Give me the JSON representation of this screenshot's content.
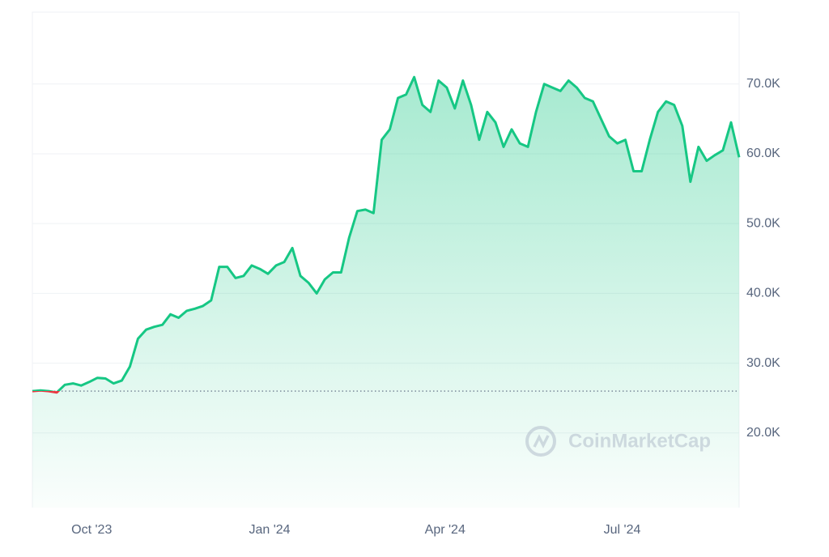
{
  "chart_data": {
    "type": "area",
    "watermark": "CoinMarketCap",
    "color": "#16c784",
    "below_color": "#ea3943",
    "baseline": 26000,
    "grid": true,
    "values": [
      26000,
      26100,
      26000,
      25800,
      26900,
      27100,
      26800,
      27300,
      27900,
      27800,
      27100,
      27500,
      29500,
      33500,
      34800,
      35200,
      35500,
      37000,
      36500,
      37500,
      37800,
      38200,
      39000,
      43800,
      43800,
      42200,
      42500,
      44000,
      43500,
      42800,
      44000,
      44500,
      46500,
      42500,
      41500,
      40000,
      42000,
      43000,
      43000,
      48000,
      51800,
      52000,
      51500,
      62000,
      63500,
      68000,
      68500,
      71000,
      67000,
      66000,
      70500,
      69500,
      66500,
      70500,
      67000,
      62000,
      66000,
      64500,
      61000,
      63500,
      61500,
      61000,
      66000,
      70000,
      69500,
      69000,
      70500,
      69500,
      68000,
      67500,
      65000,
      62500,
      61500,
      62000,
      57500,
      57500,
      62000,
      66000,
      67500,
      67000,
      64000,
      56000,
      61000,
      59000,
      59800,
      60500,
      64500,
      59500
    ],
    "xlim": [
      0,
      87
    ],
    "xticks": [
      {
        "value": 7.3,
        "label": "Oct '23"
      },
      {
        "value": 29.2,
        "label": "Jan '24"
      },
      {
        "value": 50.8,
        "label": "Apr '24"
      },
      {
        "value": 72.6,
        "label": "Jul '24"
      }
    ],
    "ylim": [
      9300,
      80300
    ],
    "yticks": [
      {
        "value": 20000,
        "label": "20.0K"
      },
      {
        "value": 30000,
        "label": "30.0K"
      },
      {
        "value": 40000,
        "label": "40.0K"
      },
      {
        "value": 50000,
        "label": "50.0K"
      },
      {
        "value": 60000,
        "label": "60.0K"
      },
      {
        "value": 70000,
        "label": "70.0K"
      }
    ]
  }
}
